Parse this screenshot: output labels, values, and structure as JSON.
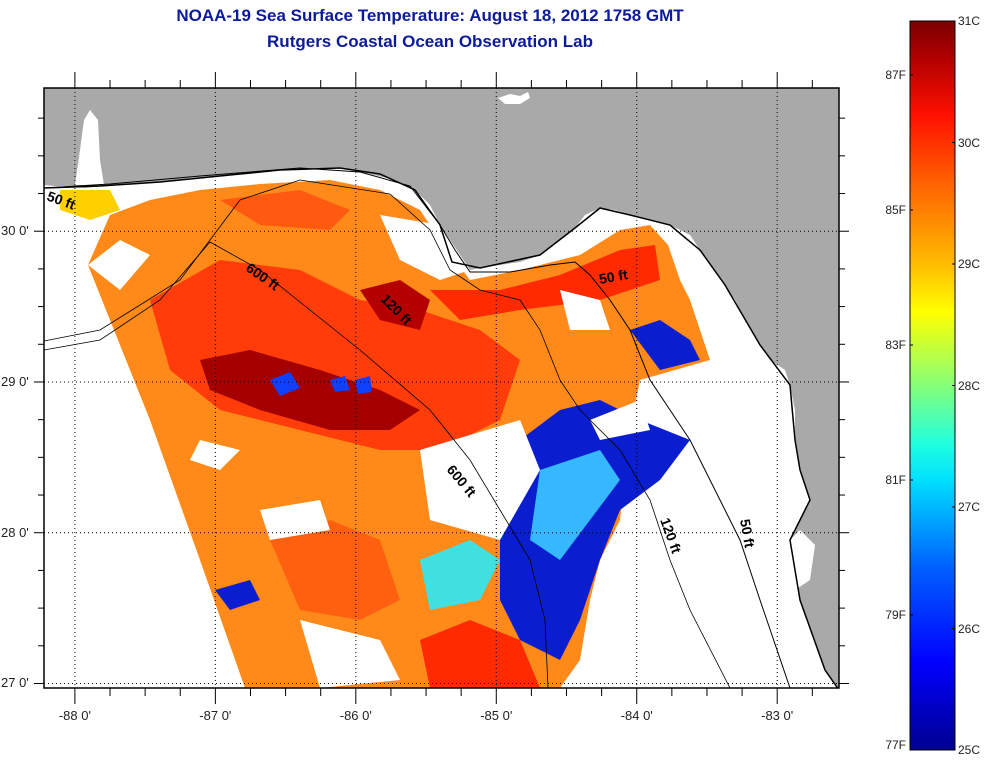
{
  "header": {
    "title": "NOAA-19 Sea Surface Temperature:  August 18, 2012 1758 GMT",
    "subtitle": "Rutgers Coastal Ocean Observation Lab"
  },
  "map": {
    "longitude_labels": [
      "-88 0'",
      "-87 0'",
      "-86 0'",
      "-85 0'",
      "-84 0'",
      "-83 0'"
    ],
    "latitude_labels": [
      "30 0'",
      "29 0'",
      "28 0'",
      "27 0'"
    ],
    "longitudes": [
      -88,
      -87,
      -86,
      -85,
      -84,
      -83
    ],
    "latitudes": [
      30,
      29,
      28,
      27
    ],
    "lon_range": [
      -88.22,
      -82.56
    ],
    "lat_range": [
      26.97,
      30.95
    ],
    "contours": [
      {
        "label": "50 ft"
      },
      {
        "label": "600 ft"
      },
      {
        "label": "120 ft"
      },
      {
        "label": "50 ft"
      },
      {
        "label": "600 ft"
      },
      {
        "label": "120 ft"
      },
      {
        "label": "50 ft"
      }
    ],
    "colors": {
      "land": "#a9a9a9",
      "cloud": "#ffffff",
      "frame": "#000000"
    }
  },
  "colorbar": {
    "celsius_labels": [
      "31C",
      "30C",
      "29C",
      "28C",
      "27C",
      "26C",
      "25C"
    ],
    "fahrenheit_labels": [
      "87F",
      "85F",
      "83F",
      "81F",
      "79F",
      "77F"
    ],
    "celsius_range": [
      25,
      31
    ],
    "colors": [
      "#00008f",
      "#0000ff",
      "#0060ff",
      "#00c0ff",
      "#00ffff",
      "#60ff9f",
      "#c0ff3f",
      "#ffff00",
      "#ffc000",
      "#ff8000",
      "#ff4000",
      "#ff0000",
      "#c00000",
      "#800000"
    ]
  }
}
